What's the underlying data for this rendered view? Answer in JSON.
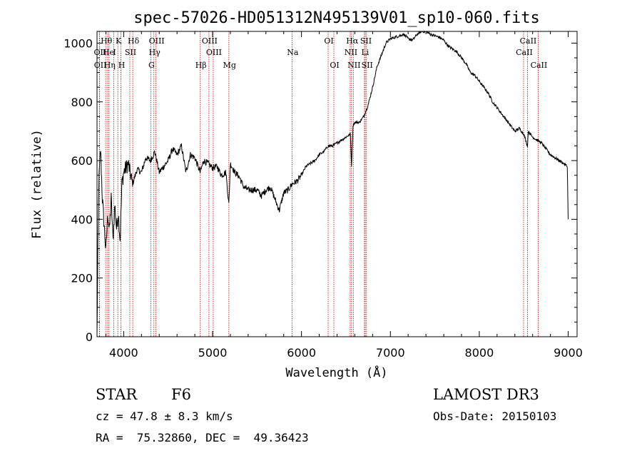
{
  "chart_data": {
    "type": "line",
    "title": "spec-57026-HD051312N495139V01_sp10-060.fits",
    "xlabel": "Wavelength (Å)",
    "ylabel": "Flux (relative)",
    "xlim": [
      3700,
      9100
    ],
    "ylim": [
      0,
      1040
    ],
    "x_ticks": [
      4000,
      5000,
      6000,
      7000,
      8000,
      9000
    ],
    "y_ticks": [
      0,
      200,
      400,
      600,
      800,
      1000
    ],
    "series": [
      {
        "name": "flux",
        "x": [
          3700,
          3710,
          3720,
          3740,
          3760,
          3780,
          3800,
          3820,
          3840,
          3860,
          3880,
          3900,
          3920,
          3940,
          3960,
          3980,
          4000,
          4050,
          4100,
          4150,
          4200,
          4250,
          4300,
          4350,
          4400,
          4450,
          4500,
          4550,
          4600,
          4650,
          4700,
          4750,
          4800,
          4861,
          4900,
          4950,
          5000,
          5050,
          5100,
          5150,
          5183,
          5200,
          5250,
          5300,
          5350,
          5400,
          5450,
          5500,
          5550,
          5600,
          5650,
          5700,
          5750,
          5800,
          5850,
          5893,
          5950,
          6000,
          6050,
          6100,
          6150,
          6200,
          6250,
          6300,
          6350,
          6400,
          6450,
          6500,
          6550,
          6563,
          6580,
          6600,
          6650,
          6700,
          6750,
          6800,
          6850,
          6900,
          6950,
          7000,
          7050,
          7100,
          7150,
          7200,
          7250,
          7300,
          7350,
          7400,
          7450,
          7500,
          7550,
          7600,
          7650,
          7700,
          7750,
          7800,
          7850,
          7900,
          7950,
          8000,
          8050,
          8100,
          8150,
          8200,
          8250,
          8300,
          8350,
          8400,
          8450,
          8500,
          8542,
          8550,
          8600,
          8650,
          8700,
          8750,
          8800,
          8850,
          8900,
          8950,
          8990,
          9000
        ],
        "y": [
          0,
          300,
          520,
          640,
          470,
          380,
          290,
          420,
          360,
          470,
          330,
          450,
          370,
          420,
          330,
          520,
          560,
          590,
          520,
          570,
          560,
          610,
          600,
          630,
          560,
          580,
          600,
          640,
          620,
          650,
          560,
          620,
          610,
          560,
          600,
          590,
          575,
          580,
          550,
          560,
          450,
          590,
          560,
          545,
          510,
          500,
          500,
          500,
          480,
          500,
          510,
          470,
          430,
          490,
          500,
          520,
          530,
          550,
          580,
          590,
          600,
          620,
          630,
          650,
          650,
          660,
          670,
          680,
          690,
          580,
          720,
          730,
          730,
          750,
          790,
          850,
          920,
          960,
          1000,
          1015,
          1020,
          1025,
          1030,
          1015,
          1010,
          1030,
          1040,
          1040,
          1030,
          1025,
          1020,
          1010,
          990,
          980,
          970,
          950,
          930,
          900,
          890,
          870,
          850,
          830,
          800,
          780,
          760,
          740,
          720,
          700,
          710,
          690,
          650,
          700,
          680,
          670,
          660,
          640,
          620,
          610,
          600,
          590,
          580,
          400
        ]
      }
    ],
    "spectral_lines": [
      {
        "label": "Hθ",
        "x": 3798,
        "row": 1
      },
      {
        "label": "OII",
        "x": 3727,
        "row": 2
      },
      {
        "label": "OII",
        "x": 3729,
        "row": 3
      },
      {
        "label": "He",
        "x": 3820,
        "row": 2
      },
      {
        "label": "Hη",
        "x": 3835,
        "row": 3
      },
      {
        "label": "K",
        "x": 3934,
        "row": 1
      },
      {
        "label": "H",
        "x": 3969,
        "row": 3
      },
      {
        "label": "I",
        "x": 3889,
        "row": 2
      },
      {
        "label": "SII",
        "x": 4069,
        "row": 2
      },
      {
        "label": "Hδ",
        "x": 4102,
        "row": 1
      },
      {
        "label": "OIII",
        "x": 4363,
        "row": 1
      },
      {
        "label": "Hγ",
        "x": 4340,
        "row": 2
      },
      {
        "label": "G",
        "x": 4305,
        "row": 3
      },
      {
        "label": "OIII",
        "x": 4959,
        "row": 1
      },
      {
        "label": "OIII",
        "x": 5007,
        "row": 2
      },
      {
        "label": "Hβ",
        "x": 4861,
        "row": 3
      },
      {
        "label": "Mg",
        "x": 5183,
        "row": 3
      },
      {
        "label": "Na",
        "x": 5893,
        "row": 2
      },
      {
        "label": "OI",
        "x": 6300,
        "row": 1
      },
      {
        "label": "OI",
        "x": 6364,
        "row": 3
      },
      {
        "label": "Hα",
        "x": 6563,
        "row": 1
      },
      {
        "label": "SII",
        "x": 6717,
        "row": 1
      },
      {
        "label": "NII",
        "x": 6548,
        "row": 2
      },
      {
        "label": "Li",
        "x": 6708,
        "row": 2
      },
      {
        "label": "NII",
        "x": 6583,
        "row": 3
      },
      {
        "label": "SII",
        "x": 6731,
        "row": 3
      },
      {
        "label": "CaII",
        "x": 8542,
        "row": 1
      },
      {
        "label": "CaII",
        "x": 8498,
        "row": 2
      },
      {
        "label": "CaII",
        "x": 8662,
        "row": 3
      }
    ],
    "line_color": "#cc0000",
    "curve_color": "#000000"
  },
  "info": {
    "object_class": "STAR",
    "subclass": "F6",
    "survey": "LAMOST DR3",
    "cz": "cz = 47.8 ± 8.3 km/s",
    "obs_date": "Obs-Date: 20150103",
    "coords": "RA =  75.32860, DEC =  49.36423"
  }
}
